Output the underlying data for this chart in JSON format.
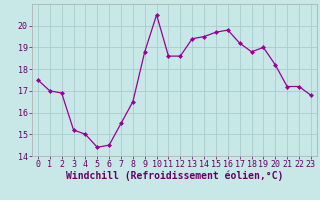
{
  "x": [
    0,
    1,
    2,
    3,
    4,
    5,
    6,
    7,
    8,
    9,
    10,
    11,
    12,
    13,
    14,
    15,
    16,
    17,
    18,
    19,
    20,
    21,
    22,
    23
  ],
  "y": [
    17.5,
    17.0,
    16.9,
    15.2,
    15.0,
    14.4,
    14.5,
    15.5,
    16.5,
    18.8,
    20.5,
    18.6,
    18.6,
    19.4,
    19.5,
    19.7,
    19.8,
    19.2,
    18.8,
    19.0,
    18.2,
    17.2,
    17.2,
    16.8
  ],
  "line_color": "#990099",
  "marker": "D",
  "marker_size": 2.0,
  "bg_color": "#c8e8e8",
  "grid_color": "#aacccc",
  "xlabel": "Windchill (Refroidissement éolien,°C)",
  "ylim": [
    14,
    21
  ],
  "xlim": [
    -0.5,
    23.5
  ],
  "yticks": [
    14,
    15,
    16,
    17,
    18,
    19,
    20
  ],
  "xticks": [
    0,
    1,
    2,
    3,
    4,
    5,
    6,
    7,
    8,
    9,
    10,
    11,
    12,
    13,
    14,
    15,
    16,
    17,
    18,
    19,
    20,
    21,
    22,
    23
  ],
  "tick_label_size": 6.0,
  "xlabel_size": 7.0,
  "xlabel_weight": "bold"
}
